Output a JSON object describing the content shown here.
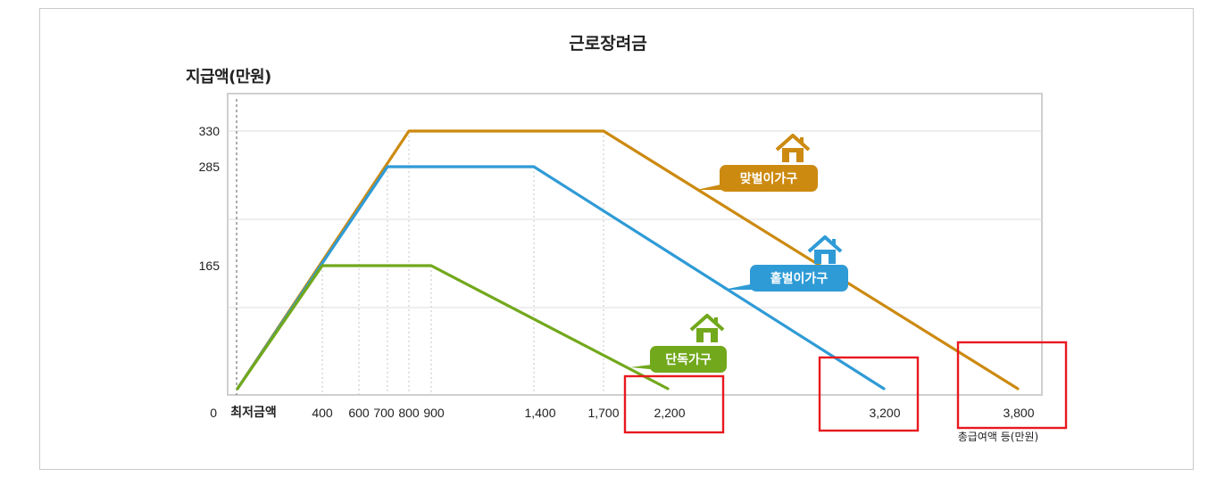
{
  "chart_data": {
    "type": "line",
    "title": "근로장려금",
    "ylabel": "지급액(만원)",
    "xlabel": "총급여액 등(만원)",
    "x_origin_label": "최저금액",
    "y_ticks": [
      {
        "value": 0,
        "label": "0"
      },
      {
        "value": 165,
        "label": "165"
      },
      {
        "value": 285,
        "label": "285"
      },
      {
        "value": 330,
        "label": "330"
      }
    ],
    "x_ticks": [
      {
        "value": 400,
        "label": "400"
      },
      {
        "value": 600,
        "label": "600"
      },
      {
        "value": 700,
        "label": "700"
      },
      {
        "value": 800,
        "label": "800"
      },
      {
        "value": 900,
        "label": "900"
      },
      {
        "value": 1400,
        "label": "1,400"
      },
      {
        "value": 1700,
        "label": "1,700"
      },
      {
        "value": 2200,
        "label": "2,200"
      },
      {
        "value": 3200,
        "label": "3,200"
      },
      {
        "value": 3800,
        "label": "3,800"
      }
    ],
    "series": [
      {
        "name": "맞벌이가구",
        "color": "#cc8a10",
        "icon": "house-icon",
        "points": [
          [
            0,
            0
          ],
          [
            800,
            330
          ],
          [
            1700,
            330
          ],
          [
            3800,
            0
          ]
        ]
      },
      {
        "name": "홑벌이가구",
        "color": "#2f9bd6",
        "icon": "house-icon",
        "points": [
          [
            0,
            0
          ],
          [
            700,
            285
          ],
          [
            1400,
            285
          ],
          [
            3200,
            0
          ]
        ]
      },
      {
        "name": "단독가구",
        "color": "#72a81c",
        "icon": "house-icon",
        "points": [
          [
            0,
            0
          ],
          [
            400,
            165
          ],
          [
            900,
            165
          ],
          [
            2200,
            0
          ]
        ]
      }
    ],
    "highlighted_x_labels": [
      "2,200",
      "3,200",
      "3,800"
    ],
    "highlight_color": "#e8191f",
    "grid": true
  }
}
